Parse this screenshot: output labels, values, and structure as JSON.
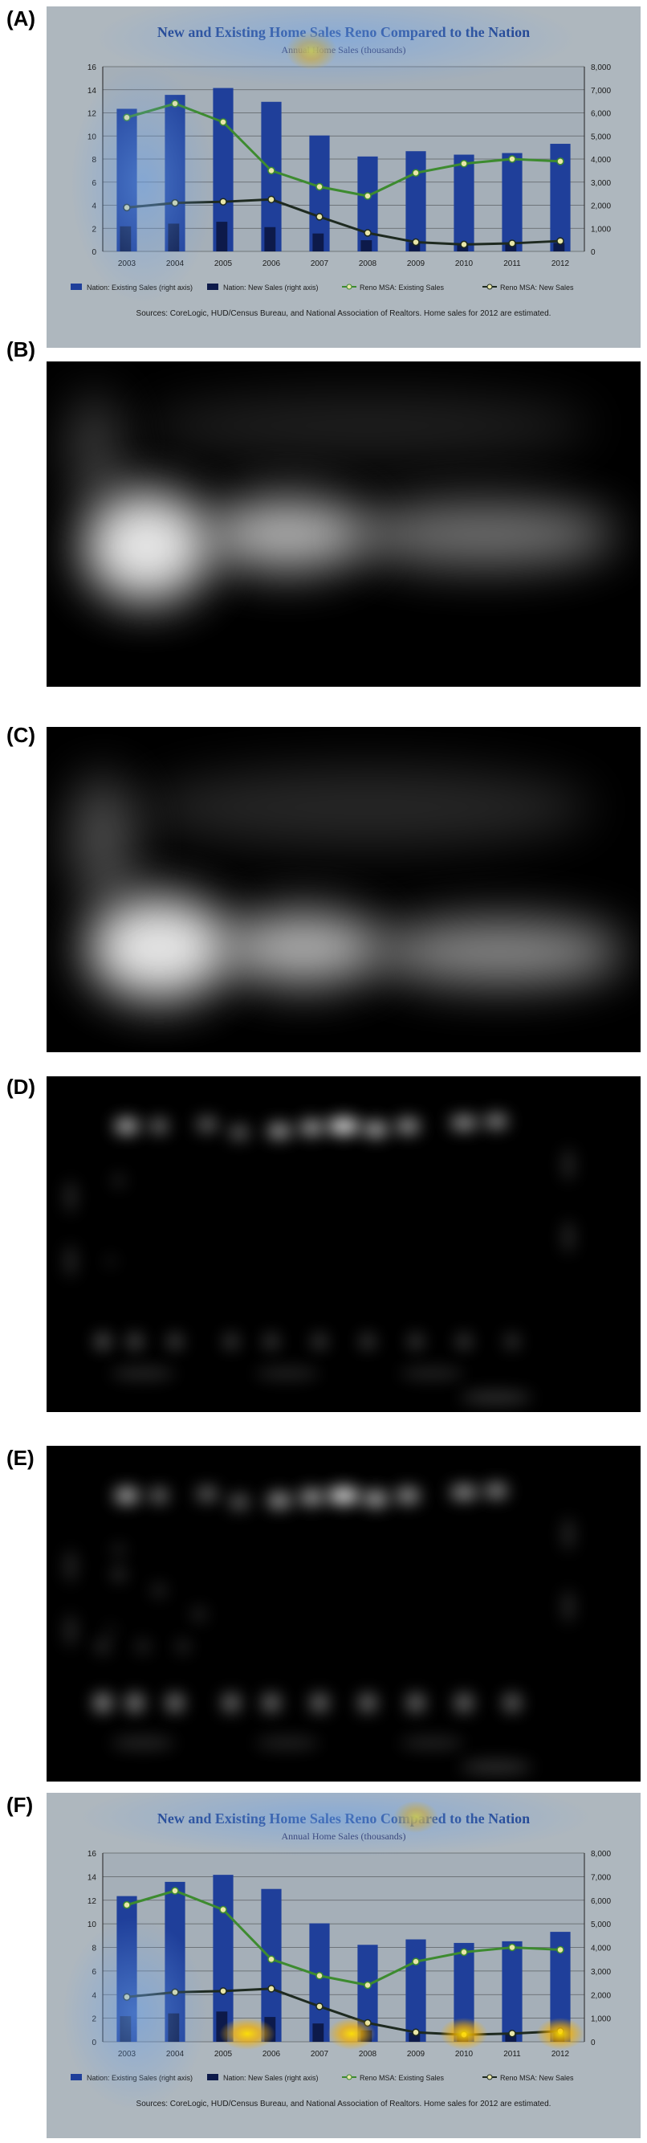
{
  "panels": [
    {
      "id": "A",
      "label": "(A)"
    },
    {
      "id": "B",
      "label": "(B)"
    },
    {
      "id": "C",
      "label": "(C)"
    },
    {
      "id": "D",
      "label": "(D)"
    },
    {
      "id": "E",
      "label": "(E)"
    },
    {
      "id": "F",
      "label": "(F)"
    }
  ],
  "chart_data": {
    "type": "bar",
    "title": "New and Existing Home Sales Reno Compared to the Nation",
    "subtitle": "Annual Home Sales (thousands)",
    "categories": [
      "2003",
      "2004",
      "2005",
      "2006",
      "2007",
      "2008",
      "2009",
      "2010",
      "2011",
      "2012"
    ],
    "y_left": {
      "lim": [
        0,
        16
      ],
      "ticks": [
        "0",
        "2",
        "4",
        "6",
        "8",
        "10",
        "12",
        "14",
        "16"
      ]
    },
    "y_right": {
      "lim": [
        0,
        8000
      ],
      "ticks": [
        "0",
        "1,000",
        "2,000",
        "3,000",
        "4,000",
        "5,000",
        "6,000",
        "7,000",
        "8,000"
      ]
    },
    "series": [
      {
        "name": "Nation: Existing Sales (right axis)",
        "kind": "bar",
        "axis": "right",
        "color": "#1f3f9a",
        "values": [
          6175,
          6778,
          7076,
          6478,
          5020,
          4110,
          4340,
          4190,
          4260,
          4660
        ]
      },
      {
        "name": "Nation: New Sales (right axis)",
        "kind": "bar",
        "axis": "right",
        "color": "#0d1a4a",
        "values": [
          1086,
          1203,
          1283,
          1051,
          776,
          485,
          375,
          323,
          306,
          368
        ]
      },
      {
        "name": "Reno MSA: Existing Sales",
        "kind": "line",
        "axis": "left",
        "color": "#3d8b2f",
        "values": [
          11.6,
          12.8,
          11.2,
          7.0,
          5.6,
          4.8,
          6.8,
          7.6,
          8.0,
          7.8
        ]
      },
      {
        "name": "Reno MSA: New Sales",
        "kind": "line",
        "axis": "left",
        "color": "#1e2a20",
        "values": [
          3.8,
          4.2,
          4.3,
          4.5,
          3.0,
          1.6,
          0.8,
          0.6,
          0.7,
          0.9
        ]
      }
    ],
    "source": "Sources: CoreLogic, HUD/Census Bureau, and National Association of Realtors. Home sales for 2012 are estimated."
  }
}
